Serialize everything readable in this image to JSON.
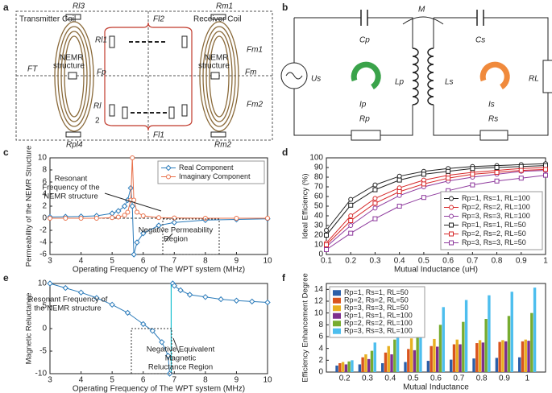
{
  "diagram_a": {
    "panel": "a",
    "texts": [
      "Transmitter Coil",
      "Receiver Coil",
      "Rl3",
      "Rm1",
      "Fl2",
      "Rl1",
      "NEMR",
      "structure",
      "FT",
      "Fp",
      "Fm",
      "Fm1",
      "Rl",
      "2",
      "Fl1",
      "Rpl4",
      "Rm2",
      "Fm2"
    ]
  },
  "diagram_b": {
    "panel": "b",
    "texts": [
      "M",
      "Cp",
      "Cs",
      "Us",
      "Lp",
      "Ls",
      "RL",
      "Ip",
      "Is",
      "Rp",
      "Rs"
    ]
  },
  "chart_data": [
    {
      "panel": "c",
      "type": "line",
      "xlabel": "Operating Frequency of The WPT system (MHz)",
      "ylabel": "Permeability of the NEMR Structure",
      "x": [
        3,
        3.5,
        4,
        4.5,
        5,
        5.2,
        5.4,
        5.5,
        5.6,
        5.65,
        5.7,
        5.8,
        6,
        6.5,
        7,
        8,
        9,
        10
      ],
      "xlim": [
        3,
        10
      ],
      "xticks": [
        3,
        4,
        5,
        6,
        7,
        8,
        9,
        10
      ],
      "ylim": [
        -6,
        10
      ],
      "yticks": [
        -6,
        -4,
        -2,
        0,
        2,
        4,
        6,
        8,
        10
      ],
      "legend": "upper right",
      "series": [
        {
          "name": "Real Component",
          "color": "#2b7bba",
          "marker": "diamond",
          "values": [
            0.2,
            0.25,
            0.3,
            0.4,
            0.8,
            1.2,
            2,
            3,
            5,
            2,
            -6,
            -4,
            -2.5,
            -1.2,
            -0.7,
            -0.3,
            -0.2,
            -0.1
          ]
        },
        {
          "name": "Imaginary Component",
          "color": "#e8704a",
          "marker": "circle",
          "values": [
            0,
            0,
            0,
            0,
            0.1,
            0.2,
            0.5,
            1,
            3,
            10,
            3,
            1,
            0.4,
            0.1,
            0.05,
            0,
            0,
            0
          ]
        }
      ],
      "annotations": [
        {
          "text": [
            "Resonant",
            "Frequency of the",
            "NEMR structure"
          ]
        },
        {
          "text": [
            "Negative Permeability",
            "Region"
          ]
        }
      ]
    },
    {
      "panel": "d",
      "type": "line",
      "xlabel": "Mutual Inductance (uH)",
      "ylabel": "Ideal Efficiency (%)",
      "x": [
        0.1,
        0.2,
        0.3,
        0.4,
        0.5,
        0.6,
        0.7,
        0.8,
        0.9,
        1
      ],
      "xlim": [
        0.1,
        1
      ],
      "xticks": [
        0.1,
        0.2,
        0.3,
        0.4,
        0.5,
        0.6,
        0.7,
        0.8,
        0.9,
        1
      ],
      "ylim": [
        0,
        100
      ],
      "yticks": [
        0,
        10,
        20,
        30,
        40,
        50,
        60,
        70,
        80,
        90,
        100
      ],
      "legend": "lower right",
      "series": [
        {
          "name": "Rp=1, Rs=1, RL=100",
          "color": "#222222",
          "marker": "circle",
          "values": [
            25,
            57,
            72,
            81,
            86,
            89,
            91,
            92,
            93,
            94
          ]
        },
        {
          "name": "Rp=2, Rs=2, RL=100",
          "color": "#d62728",
          "marker": "circle",
          "values": [
            12,
            40,
            58,
            69,
            77,
            82,
            85,
            87,
            89,
            90
          ]
        },
        {
          "name": "Rp=3, Rs=3, RL=100",
          "color": "#8e3a9d",
          "marker": "circle",
          "values": [
            8,
            30,
            48,
            61,
            70,
            76,
            80,
            83,
            86,
            87
          ]
        },
        {
          "name": "Rp=1, Rs=1, RL=50",
          "color": "#222222",
          "marker": "square",
          "values": [
            20,
            51,
            67,
            77,
            83,
            86,
            89,
            90,
            91,
            92
          ]
        },
        {
          "name": "Rp=2, Rs=2, RL=50",
          "color": "#d62728",
          "marker": "square",
          "values": [
            10,
            35,
            53,
            65,
            73,
            79,
            83,
            85,
            87,
            88
          ]
        },
        {
          "name": "Rp=3, Rs=3, RL=50",
          "color": "#8e3a9d",
          "marker": "square",
          "values": [
            5,
            22,
            37,
            50,
            59,
            66,
            72,
            76,
            79,
            82
          ]
        }
      ]
    },
    {
      "panel": "e",
      "type": "line",
      "xlabel": "Operating Frequency of The WPT system (MHz)",
      "ylabel": "Magnetic Reluctance",
      "x": [
        3,
        3.5,
        4,
        4.5,
        5,
        5.5,
        6,
        6.3,
        6.6,
        6.8,
        6.85,
        6.9,
        6.95,
        7,
        7.2,
        7.5,
        8,
        8.5,
        9,
        9.5,
        10
      ],
      "xlim": [
        3,
        10
      ],
      "xticks": [
        3,
        4,
        5,
        6,
        7,
        8,
        9,
        10
      ],
      "ylim": [
        -10,
        10
      ],
      "yticks": [
        -10,
        -5,
        0,
        5,
        10
      ],
      "vline": {
        "value": 6.9,
        "color": "#17becf"
      },
      "series": [
        {
          "name": "Magnetic Reluctance",
          "color": "#2b7bba",
          "marker": "diamond",
          "values": [
            10,
            9,
            8,
            6.8,
            5.3,
            3.5,
            1,
            -0.5,
            -3,
            -6,
            -10,
            null,
            10,
            9.5,
            8.5,
            7.5,
            7,
            6.5,
            6.2,
            6,
            5.8
          ]
        }
      ],
      "annotations": [
        {
          "text": [
            "Resonant Frequency of",
            "the NEMR structure"
          ]
        },
        {
          "text": [
            "Negative Equivalent",
            "Magnetic",
            "Reluctance Region"
          ]
        }
      ]
    },
    {
      "panel": "f",
      "type": "bar",
      "xlabel": "Mutual Inductance",
      "ylabel": "Efficiency Enhancement Degree",
      "categories": [
        "0.2",
        "0.3",
        "0.4",
        "0.5",
        "0.6",
        "0.7",
        "0.8",
        "0.9",
        "1"
      ],
      "ylim": [
        0,
        15
      ],
      "yticks": [
        0,
        2,
        4,
        6,
        8,
        10,
        12,
        14
      ],
      "legend": "upper left",
      "series": [
        {
          "name": "Rp=1, Rs=1, RL=50",
          "color": "#2c5fa8",
          "values": [
            1.1,
            1.3,
            1.5,
            1.7,
            1.9,
            2.1,
            2.3,
            2.4,
            2.5
          ]
        },
        {
          "name": "Rp=2, Rs=2, RL=50",
          "color": "#d9541e",
          "values": [
            1.5,
            2.5,
            3.3,
            3.9,
            4.4,
            4.7,
            4.9,
            5.1,
            5.2
          ]
        },
        {
          "name": "Rp=3, Rs=3, RL=50",
          "color": "#e8b021",
          "values": [
            1.7,
            3.0,
            4.4,
            5.7,
            5.6,
            5.5,
            5.4,
            5.4,
            5.5
          ]
        },
        {
          "name": "Rp=1, Rs=1, RL=100",
          "color": "#7e2f8e",
          "values": [
            1.3,
            2.2,
            3.0,
            3.7,
            4.3,
            4.7,
            5.0,
            5.2,
            5.3
          ]
        },
        {
          "name": "Rp=2, Rs=2, RL=100",
          "color": "#77ac30",
          "values": [
            1.8,
            3.6,
            5.5,
            7.0,
            8.0,
            8.5,
            9.0,
            9.5,
            10
          ]
        },
        {
          "name": "Rp=3, Rs=3, RL=100",
          "color": "#4dbeee",
          "values": [
            2,
            5,
            7.5,
            9.5,
            11,
            12.2,
            13,
            13.6,
            14.3
          ]
        }
      ]
    }
  ]
}
